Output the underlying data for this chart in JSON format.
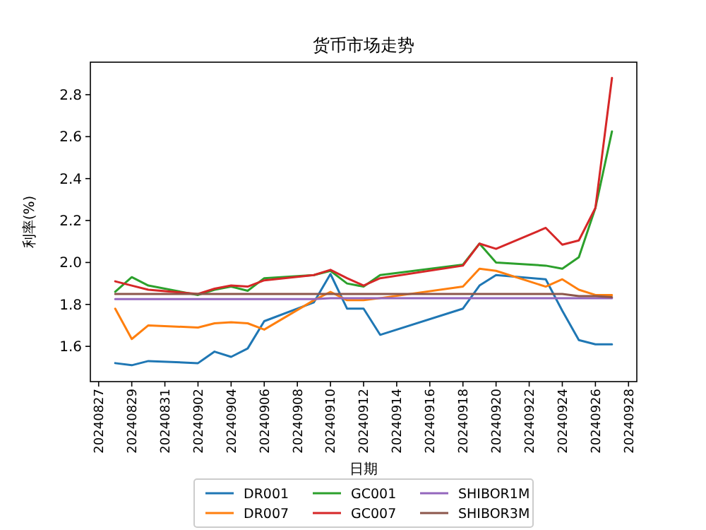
{
  "chart_data": {
    "type": "line",
    "title": "货币市场走势",
    "xlabel": "日期",
    "ylabel": "利率(%)",
    "x": [
      "2024-08-28",
      "2024-08-29",
      "2024-08-30",
      "2024-09-02",
      "2024-09-03",
      "2024-09-04",
      "2024-09-05",
      "2024-09-06",
      "2024-09-09",
      "2024-09-10",
      "2024-09-11",
      "2024-09-12",
      "2024-09-13",
      "2024-09-18",
      "2024-09-19",
      "2024-09-20",
      "2024-09-23",
      "2024-09-24",
      "2024-09-25",
      "2024-09-26",
      "2024-09-27"
    ],
    "series": [
      {
        "name": "DR001",
        "color": "#1f77b4",
        "values": [
          1.52,
          1.51,
          1.53,
          1.52,
          1.575,
          1.55,
          1.59,
          1.72,
          1.81,
          1.945,
          1.78,
          1.78,
          1.655,
          1.78,
          1.89,
          1.94,
          1.92,
          1.77,
          1.63,
          1.61,
          1.61
        ]
      },
      {
        "name": "DR007",
        "color": "#ff7f0e",
        "values": [
          1.78,
          1.635,
          1.7,
          1.69,
          1.71,
          1.715,
          1.71,
          1.68,
          1.82,
          1.86,
          1.82,
          1.82,
          1.83,
          1.885,
          1.97,
          1.96,
          1.885,
          1.92,
          1.87,
          1.845,
          1.845
        ]
      },
      {
        "name": "GC001",
        "color": "#2ca02c",
        "values": [
          1.86,
          1.93,
          1.89,
          1.845,
          1.87,
          1.885,
          1.865,
          1.925,
          1.94,
          1.96,
          1.9,
          1.885,
          1.94,
          1.99,
          2.09,
          2.0,
          1.985,
          1.97,
          2.025,
          2.26,
          2.625
        ]
      },
      {
        "name": "GC007",
        "color": "#d62728",
        "values": [
          1.91,
          1.89,
          1.87,
          1.85,
          1.875,
          1.89,
          1.885,
          1.915,
          1.94,
          1.965,
          1.925,
          1.89,
          1.925,
          1.985,
          2.09,
          2.065,
          2.165,
          2.085,
          2.105,
          2.26,
          2.88
        ]
      },
      {
        "name": "SHIBOR1M",
        "color": "#9467bd",
        "values": [
          1.825,
          1.825,
          1.825,
          1.825,
          1.825,
          1.825,
          1.825,
          1.825,
          1.825,
          1.83,
          1.83,
          1.83,
          1.83,
          1.83,
          1.83,
          1.83,
          1.83,
          1.83,
          1.83,
          1.83,
          1.83
        ]
      },
      {
        "name": "SHIBOR3M",
        "color": "#8c564b",
        "values": [
          1.85,
          1.85,
          1.85,
          1.85,
          1.85,
          1.85,
          1.85,
          1.85,
          1.85,
          1.85,
          1.85,
          1.85,
          1.85,
          1.85,
          1.85,
          1.85,
          1.85,
          1.85,
          1.84,
          1.84,
          1.835
        ]
      }
    ],
    "xlim": [
      "2024-08-26T12:00",
      "2024-09-28T12:00"
    ],
    "xticks": [
      {
        "value": "2024-08-27",
        "label": "20240827"
      },
      {
        "value": "2024-08-29",
        "label": "20240829"
      },
      {
        "value": "2024-08-31",
        "label": "20240831"
      },
      {
        "value": "2024-09-02",
        "label": "20240902"
      },
      {
        "value": "2024-09-04",
        "label": "20240904"
      },
      {
        "value": "2024-09-06",
        "label": "20240906"
      },
      {
        "value": "2024-09-08",
        "label": "20240908"
      },
      {
        "value": "2024-09-10",
        "label": "20240910"
      },
      {
        "value": "2024-09-12",
        "label": "20240912"
      },
      {
        "value": "2024-09-14",
        "label": "20240914"
      },
      {
        "value": "2024-09-16",
        "label": "20240916"
      },
      {
        "value": "2024-09-18",
        "label": "20240918"
      },
      {
        "value": "2024-09-20",
        "label": "20240920"
      },
      {
        "value": "2024-09-22",
        "label": "20240922"
      },
      {
        "value": "2024-09-24",
        "label": "20240924"
      },
      {
        "value": "2024-09-26",
        "label": "20240926"
      },
      {
        "value": "2024-09-28",
        "label": "20240928"
      }
    ],
    "ylim": [
      1.432,
      2.955
    ],
    "yticks": [
      {
        "value": 1.6,
        "label": "1.6"
      },
      {
        "value": 1.8,
        "label": "1.8"
      },
      {
        "value": 2.0,
        "label": "2.0"
      },
      {
        "value": 2.2,
        "label": "2.2"
      },
      {
        "value": 2.4,
        "label": "2.4"
      },
      {
        "value": 2.6,
        "label": "2.6"
      },
      {
        "value": 2.8,
        "label": "2.8"
      }
    ],
    "grid": false,
    "legend": "bottom"
  }
}
